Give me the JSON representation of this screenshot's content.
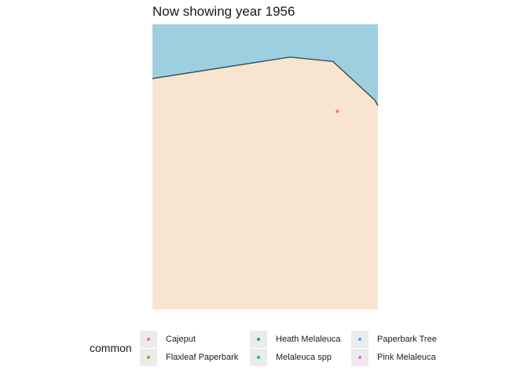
{
  "title": "Now showing year 1956",
  "colors": {
    "water": "#9ecfe0",
    "land": "#f8e5cf",
    "coastline": "#4a4a4a",
    "legend_key_bg": "#ebebeb"
  },
  "map": {
    "coastline": [
      {
        "lon": 0.0,
        "lat": 0.81
      },
      {
        "lon": 0.61,
        "lat": 0.885
      },
      {
        "lon": 0.8,
        "lat": 0.87
      },
      {
        "lon": 0.985,
        "lat": 0.735
      },
      {
        "lon": 1.0,
        "lat": 0.715
      }
    ],
    "points": [
      {
        "species": "Cajeput",
        "lon": 0.82,
        "lat": 0.695
      }
    ]
  },
  "legend": {
    "title": "common",
    "entries": [
      {
        "label": "Cajeput",
        "color": "#f8766d"
      },
      {
        "label": "Flaxleaf Paperbark",
        "color": "#b79f00"
      },
      {
        "label": "Heath Melaleuca",
        "color": "#00ba38"
      },
      {
        "label": "Melaleuca spp",
        "color": "#00bfc4"
      },
      {
        "label": "Paperbark Tree",
        "color": "#619cff"
      },
      {
        "label": "Pink Melaleuca",
        "color": "#f564e3"
      }
    ]
  }
}
